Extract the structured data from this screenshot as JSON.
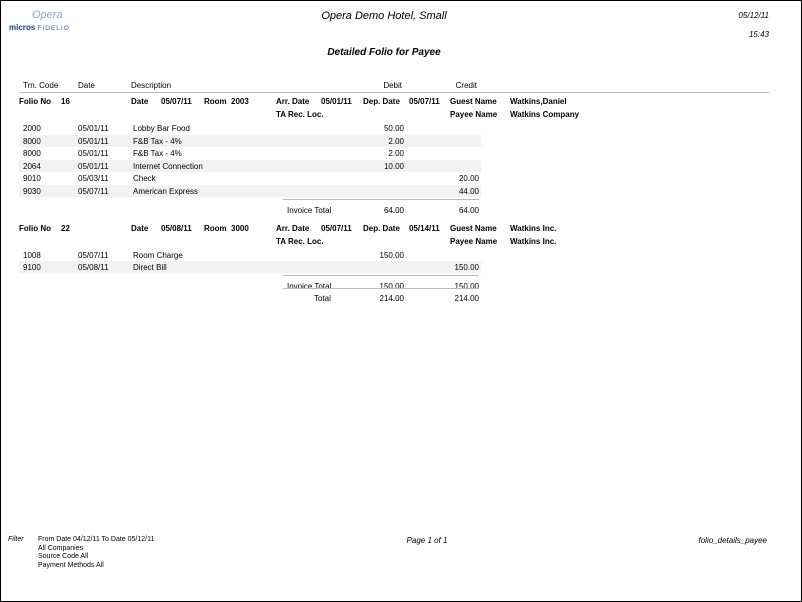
{
  "header": {
    "logo_top": "Opera",
    "logo_bottom_left": "micros",
    "logo_bottom_right": "FIDELIO",
    "hotel": "Opera Demo Hotel, Small",
    "date": "05/12/11",
    "time": "15:43",
    "title": "Detailed Folio for Payee"
  },
  "columns": {
    "trn_code": "Trn. Code",
    "date": "Date",
    "description": "Description",
    "debit": "Debit",
    "credit": "Credit"
  },
  "labels": {
    "folio_no": "Folio No",
    "date": "Date",
    "room": "Room",
    "arr_date": "Arr. Date",
    "dep_date": "Dep. Date",
    "guest_name": "Guest Name",
    "ta_rec_loc": "TA Rec. Loc.",
    "payee_name": "Payee Name",
    "invoice_total": "Invoice Total",
    "total": "Total"
  },
  "folios": [
    {
      "folio_no": "16",
      "date": "05/07/11",
      "room": "2003",
      "arr_date": "05/01/11",
      "dep_date": "05/07/11",
      "guest_name": "Watkins,Daniel",
      "payee_name": "Watkins Company",
      "rows": [
        {
          "code": "2000",
          "date": "05/01/11",
          "desc": "Lobby Bar Food",
          "debit": "50.00",
          "credit": ""
        },
        {
          "code": "8000",
          "date": "05/01/11",
          "desc": "F&B Tax - 4%",
          "debit": "2.00",
          "credit": ""
        },
        {
          "code": "8000",
          "date": "05/01/11",
          "desc": "F&B Tax - 4%",
          "debit": "2.00",
          "credit": ""
        },
        {
          "code": "2064",
          "date": "05/01/11",
          "desc": "Internet Connection",
          "debit": "10.00",
          "credit": ""
        },
        {
          "code": "9010",
          "date": "05/03/11",
          "desc": "Check",
          "debit": "",
          "credit": "20.00"
        },
        {
          "code": "9030",
          "date": "05/07/11",
          "desc": "American Express",
          "debit": "",
          "credit": "44.00"
        }
      ],
      "invoice_debit": "64.00",
      "invoice_credit": "64.00"
    },
    {
      "folio_no": "22",
      "date": "05/08/11",
      "room": "3000",
      "arr_date": "05/07/11",
      "dep_date": "05/14/11",
      "guest_name": "Watkins Inc.",
      "payee_name": "Watkins Inc.",
      "rows": [
        {
          "code": "1008",
          "date": "05/07/11",
          "desc": "Room Charge",
          "debit": "150.00",
          "credit": ""
        },
        {
          "code": "9100",
          "date": "05/08/11",
          "desc": "Direct Bill",
          "debit": "",
          "credit": "150.00"
        }
      ],
      "invoice_debit": "150.00",
      "invoice_credit": "150.00"
    }
  ],
  "total": {
    "debit": "214.00",
    "credit": "214.00"
  },
  "footer": {
    "filter_label": "Filter",
    "filters": [
      "From Date 04/12/11   To Date 05/12/11",
      "All Companies",
      "Source Code All",
      "Payment Methods All"
    ],
    "page": "Page 1 of 1",
    "report_name": "folio_details_payee"
  }
}
